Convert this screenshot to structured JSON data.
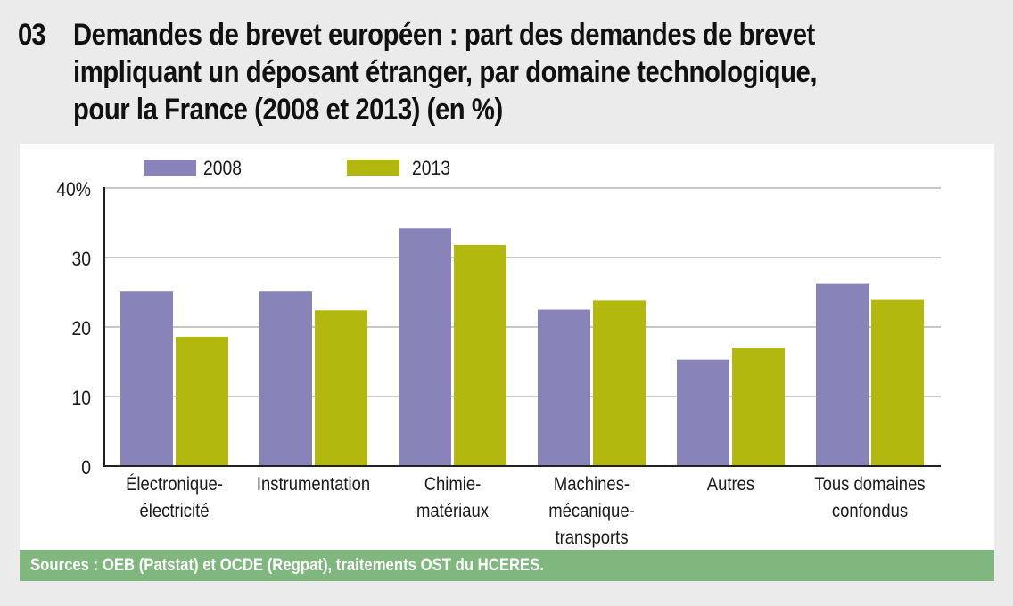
{
  "header": {
    "figure_number": "03",
    "title_lines": [
      "Demandes de brevet européen : part des demandes de brevet",
      "impliquant un déposant étranger, par domaine technologique,",
      "pour la France (2008 et 2013) (en %)"
    ]
  },
  "footer": {
    "source": "Sources : OEB (Patstat) et OCDE (Regpat), traitements OST du HCERES."
  },
  "colors": {
    "series_2008": "#8884ba",
    "series_2013": "#b3b80e",
    "footer_bg": "#7fb77f",
    "gridline": "#c8c8c8",
    "axis": "#222222"
  },
  "chart_data": {
    "type": "bar",
    "title": "Demandes de brevet européen : part des demandes de brevet impliquant un déposant étranger, par domaine technologique, pour la France (2008 et 2013) (en %)",
    "xlabel": "",
    "ylabel": "",
    "ylim": [
      0,
      40
    ],
    "yticks": [
      0,
      10,
      20,
      30,
      40
    ],
    "ytick_labels": [
      "0",
      "10",
      "20",
      "30",
      "40%"
    ],
    "grid": true,
    "legend_position": "top-left",
    "categories": [
      [
        "Électronique-",
        "électricité"
      ],
      [
        "Instrumentation"
      ],
      [
        "Chimie-",
        "matériaux"
      ],
      [
        "Machines-",
        "mécanique-",
        "transports"
      ],
      [
        "Autres"
      ],
      [
        "Tous domaines",
        "confondus"
      ]
    ],
    "series": [
      {
        "name": "2008",
        "values": [
          25.1,
          25.1,
          34.2,
          22.5,
          15.3,
          26.2
        ]
      },
      {
        "name": "2013",
        "values": [
          18.6,
          22.4,
          31.8,
          23.8,
          17.0,
          23.9
        ]
      }
    ]
  }
}
